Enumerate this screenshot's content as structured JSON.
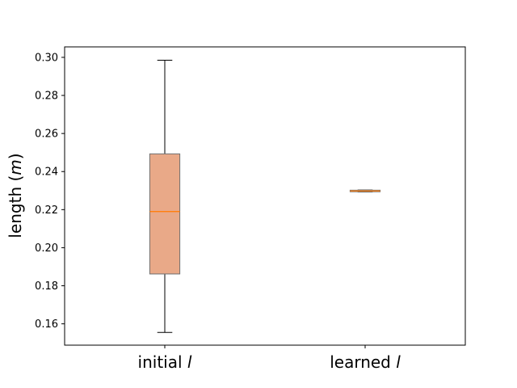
{
  "chart_data": {
    "type": "box",
    "categories": [
      {
        "label": "initial ",
        "italic": "l"
      },
      {
        "label": "learned ",
        "italic": "l"
      }
    ],
    "boxes": [
      {
        "whisker_low": 0.1555,
        "q1": 0.1862,
        "median": 0.219,
        "q3": 0.2493,
        "whisker_high": 0.2985
      },
      {
        "whisker_low": 0.2293,
        "q1": 0.2294,
        "median": 0.2298,
        "q3": 0.2302,
        "whisker_high": 0.2303
      }
    ],
    "ylabel_prefix": "length (",
    "ylabel_italic": "m",
    "ylabel_suffix": ")",
    "ylim": [
      0.1488,
      0.3055
    ],
    "yticks": [
      "0.16",
      "0.18",
      "0.20",
      "0.22",
      "0.24",
      "0.26",
      "0.28",
      "0.30"
    ],
    "grid": false,
    "colors": {
      "box_fill": "#e9a988",
      "box_edge": "#707070",
      "median": "#ff7f0e",
      "whisker": "#000000"
    }
  }
}
